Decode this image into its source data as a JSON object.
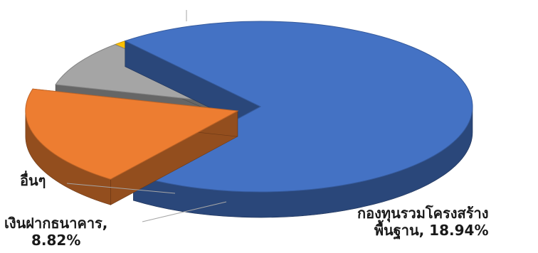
{
  "chart_data": {
    "type": "pie",
    "three_d": true,
    "title": "",
    "legend": "none",
    "slices": [
      {
        "name": "",
        "value": 71.24,
        "value_label": "",
        "color": "#4472C4",
        "exploded": false
      },
      {
        "name": "กองทุนรวมโครงสร้างพื้นฐาน",
        "value": 18.94,
        "value_label": "18.94%",
        "color": "#ED7D31",
        "exploded": true
      },
      {
        "name": "เงินฝากธนาคาร",
        "value": 8.82,
        "value_label": "8.82%",
        "color": "#A5A5A5",
        "exploded": false
      },
      {
        "name": "อื่นๆ",
        "value": 1.0,
        "value_label": "",
        "color": "#FFC000",
        "exploded": false
      }
    ]
  },
  "labels": {
    "infra_line1": "กองทุนรวมโครงสร้าง",
    "infra_line2": "พื้นฐาน, 18.94%",
    "deposit_line1": "เงินฝากธนาคาร,",
    "deposit_line2": "8.82%",
    "other": "อื่นๆ"
  }
}
